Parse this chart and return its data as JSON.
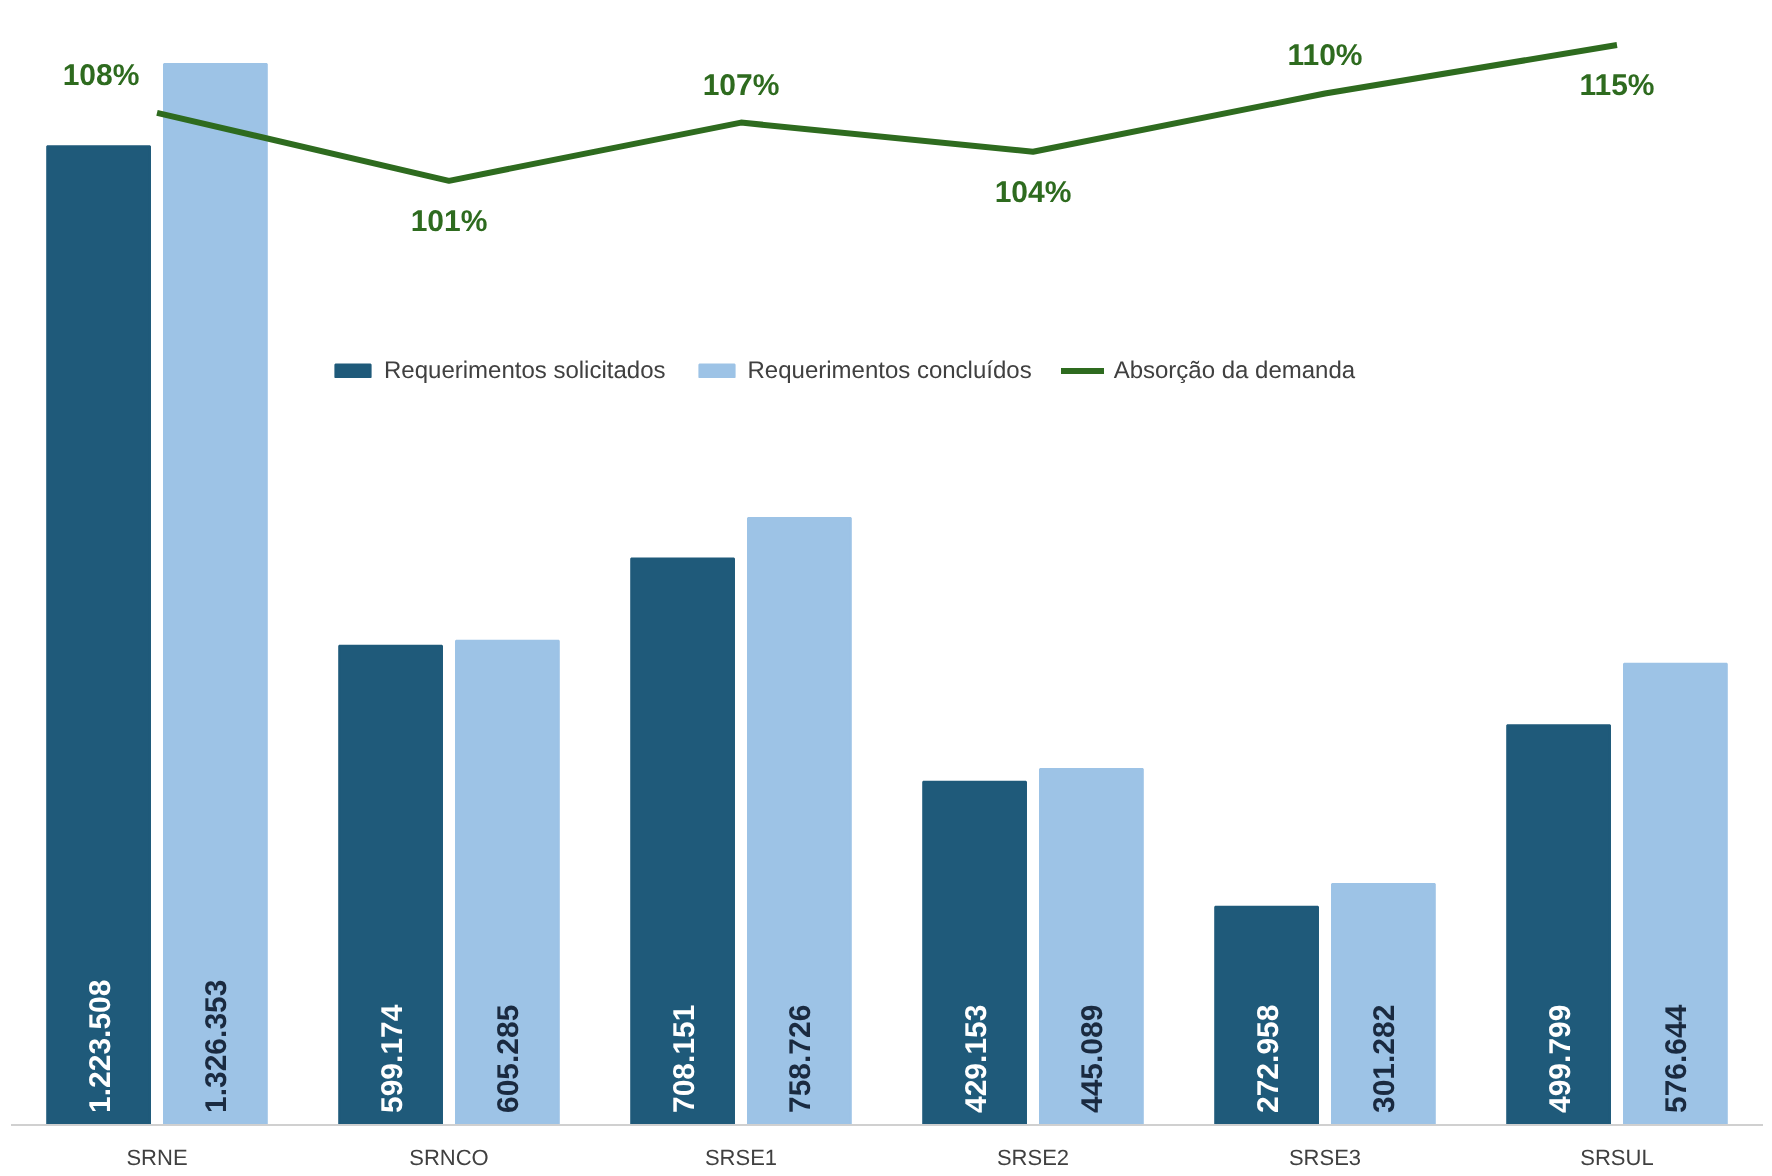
{
  "chart_data": {
    "type": "bar",
    "categories": [
      "SRNE",
      "SRNCO",
      "SRSE1",
      "SRSE2",
      "SRSE3",
      "SRSUL"
    ],
    "series": [
      {
        "name": "Requerimentos solicitados",
        "color": "#1f5a7a",
        "values": [
          1223508,
          599174,
          708151,
          429153,
          272958,
          499799
        ],
        "value_labels": [
          "1.223.508",
          "599.174",
          "708.151",
          "429.153",
          "272.958",
          "499.799"
        ]
      },
      {
        "name": "Requerimentos concluídos",
        "color": "#9dc3e6",
        "values": [
          1326353,
          605285,
          758726,
          445089,
          301282,
          576644
        ],
        "value_labels": [
          "1.326.353",
          "605.285",
          "758.726",
          "445.089",
          "301.282",
          "576.644"
        ]
      },
      {
        "name": "Absorção da demanda",
        "type": "line",
        "axis": "y2",
        "color": "#2e6b1f",
        "values": [
          108,
          101,
          107,
          104,
          110,
          115
        ],
        "value_labels": [
          "108%",
          "101%",
          "107%",
          "104%",
          "110%",
          "115%"
        ]
      }
    ],
    "tick_labels": "x",
    "grid": false,
    "legend": "top right"
  }
}
